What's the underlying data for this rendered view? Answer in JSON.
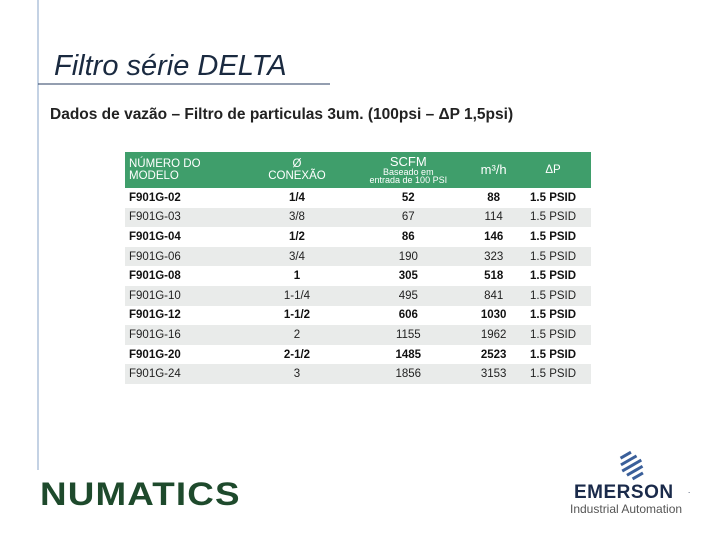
{
  "header": {
    "title": "Filtro série DELTA",
    "subtitle": "Dados de vazão – Filtro de particulas 3um. (100psi – ΔP 1,5psi)"
  },
  "table": {
    "columns": [
      [
        "NÚMERO DO",
        "MODELO"
      ],
      [
        "Ø",
        "CONEXÃO"
      ],
      [
        "SCFM",
        "Baseado em",
        "entrada de 100 PSI"
      ],
      [
        "m³/h"
      ],
      [
        "ΔP"
      ]
    ],
    "rows": [
      [
        "F901G-02",
        "1/4",
        "52",
        "88",
        "1.5 PSID"
      ],
      [
        "F901G-03",
        "3/8",
        "67",
        "114",
        "1.5 PSID"
      ],
      [
        "F901G-04",
        "1/2",
        "86",
        "146",
        "1.5 PSID"
      ],
      [
        "F901G-06",
        "3/4",
        "190",
        "323",
        "1.5 PSID"
      ],
      [
        "F901G-08",
        "1",
        "305",
        "518",
        "1.5 PSID"
      ],
      [
        "F901G-10",
        "1-1/4",
        "495",
        "841",
        "1.5 PSID"
      ],
      [
        "F901G-12",
        "1-1/2",
        "606",
        "1030",
        "1.5 PSID"
      ],
      [
        "F901G-16",
        "2",
        "1155",
        "1962",
        "1.5 PSID"
      ],
      [
        "F901G-20",
        "2-1/2",
        "1485",
        "2523",
        "1.5 PSID"
      ],
      [
        "F901G-24",
        "3",
        "1856",
        "3153",
        "1.5 PSID"
      ]
    ]
  },
  "footer": {
    "left_logo": "NUMATICS",
    "right_logo": "EMERSON",
    "right_logo_mark": ".",
    "right_logo_sub": "Industrial Automation"
  }
}
